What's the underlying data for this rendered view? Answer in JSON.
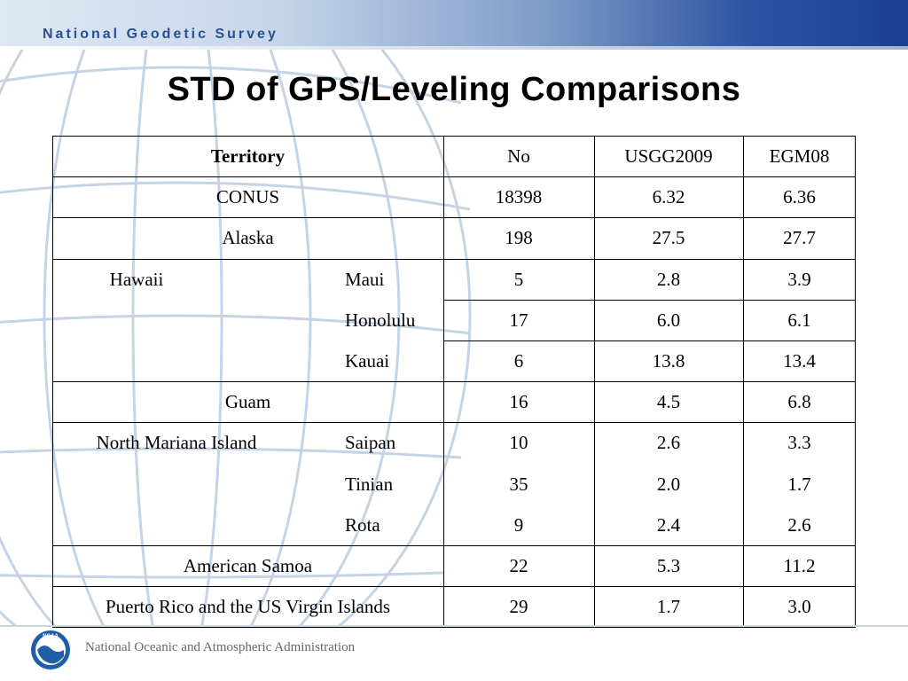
{
  "header": {
    "agency": "National Geodetic Survey"
  },
  "title": "STD  of GPS/Leveling Comparisons",
  "table": {
    "headers": {
      "territory": "Territory",
      "no": "No",
      "usgg": "USGG2009",
      "egm": "EGM08"
    },
    "rows": [
      {
        "territory": "CONUS",
        "sub": "",
        "no": "18398",
        "usgg": "6.32",
        "egm": "6.36"
      },
      {
        "territory": "Alaska",
        "sub": "",
        "no": "198",
        "usgg": "27.5",
        "egm": "27.7"
      },
      {
        "territory": "Hawaii",
        "sub": "Maui",
        "no": "5",
        "usgg": "2.8",
        "egm": "3.9"
      },
      {
        "territory": "",
        "sub": "Honolulu",
        "no": "17",
        "usgg": "6.0",
        "egm": "6.1"
      },
      {
        "territory": "",
        "sub": "Kauai",
        "no": "6",
        "usgg": "13.8",
        "egm": "13.4"
      },
      {
        "territory": "Guam",
        "sub": "",
        "no": "16",
        "usgg": "4.5",
        "egm": "6.8"
      },
      {
        "territory": "North Mariana Island",
        "sub": "Saipan",
        "no": "10",
        "usgg": "2.6",
        "egm": "3.3"
      },
      {
        "territory": "",
        "sub": "Tinian",
        "no": "35",
        "usgg": "2.0",
        "egm": "1.7"
      },
      {
        "territory": "",
        "sub": "Rota",
        "no": "9",
        "usgg": "2.4",
        "egm": "2.6"
      },
      {
        "territory": "American Samoa",
        "sub": "",
        "no": "22",
        "usgg": "5.3",
        "egm": "11.2"
      },
      {
        "territory": "Puerto Rico and the US Virgin Islands",
        "sub": "",
        "no": "29",
        "usgg": "1.7",
        "egm": "3.0"
      }
    ]
  },
  "footer": {
    "organization": "National Oceanic and Atmospheric Administration",
    "logo_text": "NOAA"
  },
  "colors": {
    "header_blue": "#2a4f93",
    "globe_line": "#c5d3e6"
  }
}
